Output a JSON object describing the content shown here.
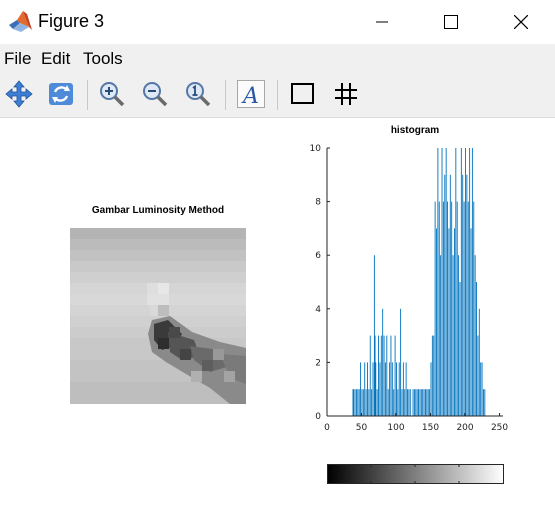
{
  "window": {
    "title": "Figure 3",
    "controls": {
      "minimize_icon": "minimize-icon",
      "maximize_icon": "maximize-icon",
      "close_icon": "close-icon"
    }
  },
  "menu": {
    "items": [
      "File",
      "Edit",
      "Tools"
    ]
  },
  "toolbar": {
    "tools": [
      "pan-icon",
      "rotate-icon",
      "zoom-in-icon",
      "zoom-out-icon",
      "zoom-reset-icon",
      "text-insert-icon",
      "legend-box-icon",
      "grid-icon"
    ],
    "text_tool_glyph": "A"
  },
  "figure": {
    "image_panel": {
      "title": "Gambar Luminosity Method"
    },
    "histogram": {
      "title": "histogram"
    },
    "colorbar": {
      "type": "grayscale",
      "range": "black-to-white"
    }
  },
  "chart_data": {
    "type": "bar",
    "title": "histogram",
    "xlim": [
      0,
      255
    ],
    "ylim": [
      0,
      10
    ],
    "xticks": [
      0,
      50,
      100,
      150,
      200,
      250
    ],
    "yticks": [
      0,
      2,
      4,
      6,
      8,
      10
    ],
    "color": "#0072bd",
    "x": [
      37,
      38,
      40,
      42,
      44,
      46,
      48,
      50,
      52,
      54,
      56,
      58,
      60,
      62,
      64,
      66,
      68,
      69,
      70,
      72,
      74,
      76,
      78,
      80,
      82,
      84,
      86,
      88,
      90,
      92,
      94,
      96,
      98,
      100,
      102,
      104,
      106,
      108,
      110,
      112,
      114,
      116,
      118,
      120,
      124,
      126,
      128,
      130,
      132,
      134,
      136,
      138,
      140,
      142,
      144,
      146,
      148,
      150,
      152,
      154,
      156,
      158,
      160,
      162,
      164,
      166,
      168,
      170,
      172,
      174,
      176,
      178,
      180,
      182,
      184,
      186,
      188,
      190,
      192,
      194,
      196,
      198,
      200,
      202,
      204,
      206,
      208,
      210,
      212,
      214,
      216,
      218,
      220,
      222,
      224,
      226,
      228
    ],
    "values": [
      1,
      1,
      1,
      1,
      1,
      1,
      2,
      1,
      1,
      2,
      1,
      2,
      1,
      3,
      1,
      2,
      6,
      3,
      2,
      1,
      3,
      2,
      3,
      4,
      3,
      2,
      3,
      1,
      2,
      3,
      2,
      1,
      3,
      2,
      1,
      2,
      4,
      1,
      2,
      1,
      2,
      1,
      1,
      1,
      1,
      1,
      1,
      1,
      1,
      1,
      1,
      1,
      1,
      1,
      1,
      1,
      1,
      2,
      3,
      3,
      8,
      7,
      10,
      8,
      6,
      10,
      8,
      9,
      10,
      8,
      7,
      9,
      8,
      6,
      7,
      10,
      8,
      6,
      5,
      10,
      9,
      8,
      10,
      9,
      8,
      10,
      7,
      10,
      8,
      6,
      5,
      3,
      4,
      2,
      2,
      1,
      1
    ]
  }
}
